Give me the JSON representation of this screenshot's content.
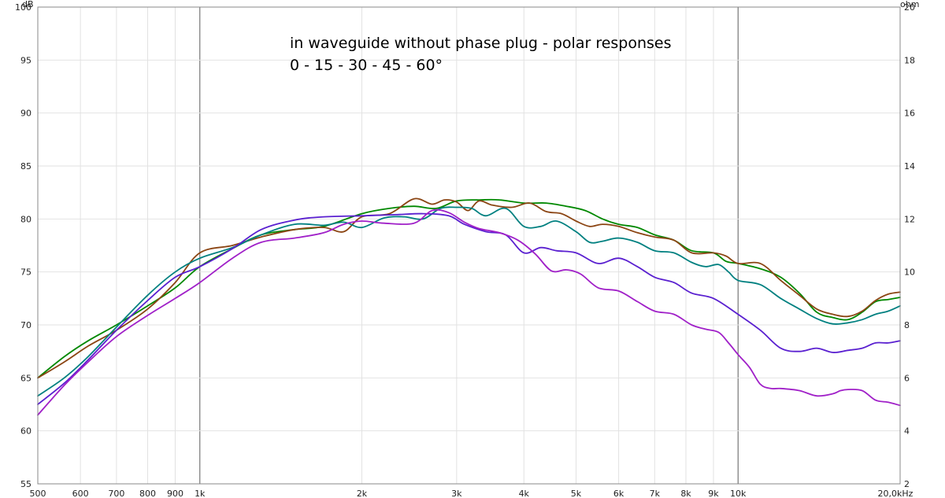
{
  "chart_data": {
    "type": "line",
    "title": "in waveguide without phase plug - polar responses",
    "subtitle": "0 - 15 - 30 - 45 - 60°",
    "ylabel": "dB",
    "y2label": "ohm",
    "xscale": "log",
    "xlim": [
      500,
      20000
    ],
    "ylim": [
      55,
      100
    ],
    "y2lim": [
      2,
      20
    ],
    "grid": true,
    "x_ticks": [
      {
        "value": 500,
        "label": "500"
      },
      {
        "value": 600,
        "label": "600"
      },
      {
        "value": 700,
        "label": "700"
      },
      {
        "value": 800,
        "label": "800"
      },
      {
        "value": 900,
        "label": "900"
      },
      {
        "value": 1000,
        "label": "1k"
      },
      {
        "value": 2000,
        "label": "2k"
      },
      {
        "value": 3000,
        "label": "3k"
      },
      {
        "value": 4000,
        "label": "4k"
      },
      {
        "value": 5000,
        "label": "5k"
      },
      {
        "value": 6000,
        "label": "6k"
      },
      {
        "value": 7000,
        "label": "7k"
      },
      {
        "value": 8000,
        "label": "8k"
      },
      {
        "value": 9000,
        "label": "9k"
      },
      {
        "value": 10000,
        "label": "10k"
      },
      {
        "value": 20000,
        "label": "20,0kHz"
      }
    ],
    "x_major_ticks": [
      1000,
      10000
    ],
    "y_ticks": [
      55,
      60,
      65,
      70,
      75,
      80,
      85,
      90,
      95,
      100
    ],
    "y2_ticks": [
      2,
      4,
      6,
      8,
      10,
      12,
      14,
      16,
      18,
      20
    ],
    "series": [
      {
        "color": "#008800",
        "x": [
          500,
          560,
          620,
          700,
          800,
          900,
          1000,
          1150,
          1300,
          1500,
          1700,
          2000,
          2250,
          2500,
          2750,
          3000,
          3300,
          3600,
          4000,
          4400,
          4800,
          5200,
          5600,
          6000,
          6500,
          7000,
          7600,
          8200,
          9000,
          9500,
          10000,
          11000,
          12000,
          13000,
          14000,
          15000,
          16000,
          17000,
          18000,
          19000,
          20000
        ],
        "y": [
          65,
          67,
          68.5,
          70,
          71.8,
          73.5,
          75.5,
          77.2,
          78.5,
          79,
          79.3,
          80.5,
          81,
          81.2,
          81,
          81.7,
          81.8,
          81.8,
          81.5,
          81.5,
          81.2,
          80.8,
          80,
          79.5,
          79.2,
          78.5,
          78,
          77,
          76.8,
          76,
          75.8,
          75.3,
          74.5,
          73,
          71.2,
          70.7,
          70.5,
          71.2,
          72.2,
          72.4,
          72.6
        ]
      },
      {
        "color": "#8B4513",
        "x": [
          500,
          560,
          620,
          700,
          800,
          900,
          1000,
          1150,
          1300,
          1500,
          1700,
          1850,
          2000,
          2250,
          2500,
          2700,
          2850,
          3000,
          3150,
          3300,
          3500,
          3800,
          4100,
          4400,
          4700,
          5000,
          5300,
          5600,
          6000,
          6500,
          7000,
          7600,
          8200,
          9000,
          9500,
          10000,
          11000,
          12000,
          13000,
          14000,
          15000,
          16000,
          17000,
          18000,
          19000,
          20000
        ],
        "y": [
          65,
          66.5,
          68,
          69.5,
          71.5,
          74,
          76.8,
          77.5,
          78.3,
          79,
          79.2,
          78.8,
          80.2,
          80.5,
          81.9,
          81.4,
          81.8,
          81.6,
          80.8,
          81.7,
          81.3,
          81.1,
          81.5,
          80.7,
          80.5,
          79.8,
          79.3,
          79.5,
          79.3,
          78.7,
          78.3,
          78,
          76.8,
          76.8,
          76.5,
          75.8,
          75.8,
          74.2,
          72.8,
          71.5,
          71,
          70.8,
          71.3,
          72.3,
          72.9,
          73.1
        ]
      },
      {
        "color": "#008080",
        "x": [
          500,
          560,
          620,
          700,
          800,
          900,
          1000,
          1150,
          1300,
          1500,
          1700,
          1850,
          2000,
          2200,
          2400,
          2600,
          2800,
          3000,
          3200,
          3400,
          3700,
          4000,
          4300,
          4600,
          5000,
          5300,
          5600,
          6000,
          6500,
          7000,
          7600,
          8200,
          8700,
          9200,
          9600,
          10000,
          11000,
          12000,
          13000,
          14000,
          15000,
          16000,
          17000,
          18000,
          19000,
          20000
        ],
        "y": [
          63.3,
          65,
          67,
          69.8,
          72.8,
          75,
          76.3,
          77.3,
          78.5,
          79.5,
          79.4,
          79.7,
          79.2,
          80.1,
          80.2,
          80,
          81,
          81.1,
          81,
          80.3,
          81,
          79.3,
          79.3,
          79.8,
          78.8,
          77.8,
          77.9,
          78.2,
          77.8,
          77,
          76.8,
          75.9,
          75.5,
          75.7,
          75,
          74.2,
          73.8,
          72.5,
          71.5,
          70.6,
          70.1,
          70.2,
          70.5,
          71,
          71.3,
          71.8
        ]
      },
      {
        "color": "#5A20D0",
        "x": [
          500,
          560,
          620,
          700,
          800,
          900,
          1000,
          1150,
          1300,
          1500,
          1700,
          2000,
          2300,
          2600,
          2900,
          3100,
          3400,
          3700,
          4000,
          4300,
          4600,
          5000,
          5500,
          6000,
          6500,
          7000,
          7600,
          8200,
          9000,
          10000,
          11000,
          12000,
          13000,
          14000,
          15000,
          16000,
          17000,
          18000,
          19000,
          20000
        ],
        "y": [
          62.5,
          64.5,
          66.7,
          69.5,
          72.3,
          74.5,
          75.5,
          77.2,
          79,
          79.9,
          80.2,
          80.3,
          80.4,
          80.5,
          80.3,
          79.5,
          78.8,
          78.5,
          76.8,
          77.3,
          77,
          76.8,
          75.8,
          76.3,
          75.5,
          74.5,
          74,
          73,
          72.5,
          71,
          69.5,
          67.8,
          67.5,
          67.8,
          67.4,
          67.6,
          67.8,
          68.3,
          68.3,
          68.5
        ]
      },
      {
        "color": "#A020C8",
        "x": [
          500,
          560,
          620,
          700,
          800,
          900,
          1000,
          1150,
          1300,
          1500,
          1700,
          1850,
          2000,
          2200,
          2500,
          2700,
          2900,
          3100,
          3300,
          3600,
          3900,
          4200,
          4500,
          4800,
          5100,
          5500,
          6000,
          6500,
          7000,
          7600,
          8200,
          8700,
          9200,
          9600,
          10000,
          10500,
          11000,
          11500,
          12000,
          13000,
          14000,
          15000,
          15500,
          16000,
          17000,
          18000,
          19000,
          20000
        ],
        "y": [
          61.5,
          64.3,
          66.5,
          68.9,
          70.9,
          72.5,
          74,
          76.3,
          77.8,
          78.2,
          78.7,
          79.5,
          79.8,
          79.6,
          79.6,
          80.8,
          80.6,
          79.7,
          79.1,
          78.7,
          78,
          76.7,
          75.1,
          75.2,
          74.8,
          73.5,
          73.2,
          72.2,
          71.3,
          71,
          70,
          69.6,
          69.3,
          68.3,
          67.2,
          66,
          64.4,
          64,
          64,
          63.8,
          63.3,
          63.5,
          63.8,
          63.9,
          63.8,
          62.9,
          62.7,
          62.4
        ]
      }
    ]
  }
}
